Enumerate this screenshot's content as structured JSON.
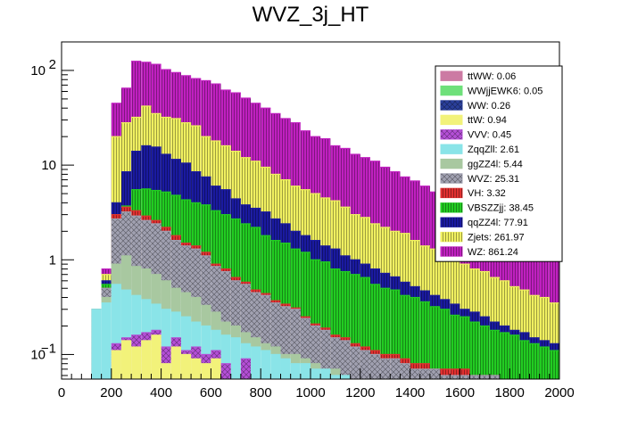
{
  "chart_data": {
    "type": "bar",
    "subtype": "stacked-histogram",
    "title": "WVZ_3j_HT",
    "xlabel": "",
    "ylabel": "",
    "xlim": [
      0,
      2000
    ],
    "ylim": [
      0.055,
      200
    ],
    "yscale": "log",
    "x_tick_labels": [
      "0",
      "200",
      "400",
      "600",
      "800",
      "1000",
      "1200",
      "1400",
      "1600",
      "1800",
      "2000"
    ],
    "y_tick_labels": [
      {
        "value": 100,
        "base": "10",
        "exp": "2"
      },
      {
        "value": 10,
        "base": "10",
        "exp": ""
      },
      {
        "value": 1,
        "base": "1",
        "exp": ""
      },
      {
        "value": 0.1,
        "base": "10",
        "exp": "−1"
      }
    ],
    "legend": [
      {
        "label": "ttWW: 0.06",
        "color": "#cc7aa3",
        "pattern": "solid"
      },
      {
        "label": "WWjjEWK6: 0.05",
        "color": "#6ee07a",
        "pattern": "solid"
      },
      {
        "label": "WW: 0.26",
        "color": "#2a3f9a",
        "pattern": "crosshatch"
      },
      {
        "label": "ttW: 0.94",
        "color": "#f2f27a",
        "pattern": "solid"
      },
      {
        "label": "VVV: 0.45",
        "color": "#b44fd6",
        "pattern": "crosshatch"
      },
      {
        "label": "ZqqZll: 2.61",
        "color": "#8ae4e8",
        "pattern": "solid"
      },
      {
        "label": "ggZZ4l: 5.44",
        "color": "#a8c8a0",
        "pattern": "solid"
      },
      {
        "label": "WVZ: 25.31",
        "color": "#a0a0b0",
        "pattern": "crosshatch"
      },
      {
        "label": "VH: 3.32",
        "color": "#e03030",
        "pattern": "vlines"
      },
      {
        "label": "VBSZZjj: 38.45",
        "color": "#22cc22",
        "pattern": "vlines"
      },
      {
        "label": "qqZZ4l: 77.91",
        "color": "#1a1aa0",
        "pattern": "vlines"
      },
      {
        "label": "Zjets: 261.97",
        "color": "#f0f060",
        "pattern": "vlines"
      },
      {
        "label": "WZ: 861.24",
        "color": "#c020c0",
        "pattern": "vlines"
      }
    ],
    "bin_width": 40,
    "bins_start": [
      120,
      160,
      200,
      240,
      280,
      320,
      360,
      400,
      440,
      480,
      520,
      560,
      600,
      640,
      680,
      720,
      760,
      800,
      840,
      880,
      920,
      960,
      1000,
      1040,
      1080,
      1120,
      1160,
      1200,
      1240,
      1280,
      1320,
      1360,
      1400,
      1440,
      1480,
      1520,
      1560,
      1600,
      1640,
      1680,
      1720,
      1760,
      1800,
      1840,
      1880,
      1920,
      1960
    ],
    "cumulative_tops": [
      {
        "name": "ttW",
        "values": [
          0,
          0.04,
          0.11,
          0.14,
          0.12,
          0.14,
          0.16,
          0.08,
          0.12,
          0.1,
          0.09,
          0.08,
          0.09,
          0,
          0,
          0,
          0,
          0,
          0,
          0,
          0,
          0,
          0,
          0,
          0,
          0,
          0,
          0,
          0,
          0,
          0,
          0,
          0,
          0,
          0,
          0,
          0,
          0,
          0,
          0,
          0,
          0,
          0,
          0,
          0,
          0,
          0
        ]
      },
      {
        "name": "VVV",
        "values": [
          0,
          0.05,
          0.13,
          0.15,
          0.16,
          0.17,
          0.18,
          0.12,
          0.15,
          0.11,
          0.12,
          0.1,
          0.11,
          0.08,
          0,
          0.09,
          0,
          0,
          0,
          0,
          0,
          0,
          0,
          0,
          0,
          0,
          0,
          0,
          0,
          0,
          0,
          0,
          0,
          0,
          0,
          0,
          0,
          0,
          0,
          0,
          0,
          0,
          0,
          0,
          0,
          0,
          0
        ]
      },
      {
        "name": "ZqqZll",
        "values": [
          0.3,
          0.35,
          0.55,
          0.48,
          0.42,
          0.38,
          0.34,
          0.3,
          0.28,
          0.25,
          0.22,
          0.2,
          0.18,
          0.16,
          0.15,
          0.13,
          0.12,
          0.11,
          0.1,
          0.09,
          0.08,
          0.08,
          0.07,
          0.07,
          0.06,
          0.06,
          0,
          0,
          0,
          0,
          0,
          0,
          0,
          0,
          0,
          0,
          0,
          0,
          0,
          0,
          0,
          0,
          0,
          0,
          0,
          0,
          0
        ]
      },
      {
        "name": "ggZZ4l",
        "values": [
          0.3,
          0.4,
          0.9,
          1.1,
          0.85,
          0.8,
          0.7,
          0.6,
          0.5,
          0.45,
          0.4,
          0.33,
          0.28,
          0.22,
          0.2,
          0.17,
          0.15,
          0.13,
          0.12,
          0.1,
          0.1,
          0.09,
          0.08,
          0.07,
          0.07,
          0.06,
          0,
          0,
          0,
          0,
          0,
          0,
          0,
          0,
          0,
          0,
          0,
          0,
          0,
          0,
          0,
          0,
          0,
          0,
          0,
          0,
          0
        ]
      },
      {
        "name": "WVZ",
        "values": [
          0.3,
          0.5,
          2.7,
          3.2,
          2.9,
          2.6,
          2.4,
          2.0,
          1.6,
          1.4,
          1.3,
          1.1,
          0.85,
          0.75,
          0.6,
          0.55,
          0.45,
          0.42,
          0.35,
          0.32,
          0.3,
          0.24,
          0.2,
          0.18,
          0.15,
          0.14,
          0.12,
          0.11,
          0.1,
          0.09,
          0.09,
          0.08,
          0.07,
          0.07,
          0.07,
          0.06,
          0.06,
          0.06,
          0.06,
          0.06,
          0.06,
          0,
          0,
          0,
          0,
          0,
          0
        ]
      },
      {
        "name": "VH",
        "values": [
          0.3,
          0.5,
          3.0,
          3.6,
          3.3,
          2.9,
          2.6,
          2.2,
          1.8,
          1.5,
          1.4,
          1.2,
          0.9,
          0.8,
          0.65,
          0.58,
          0.48,
          0.44,
          0.37,
          0.34,
          0.31,
          0.25,
          0.21,
          0.19,
          0.16,
          0.15,
          0.13,
          0.12,
          0.11,
          0.1,
          0.1,
          0.09,
          0.08,
          0.08,
          0.07,
          0.07,
          0.07,
          0.07,
          0.06,
          0.06,
          0.06,
          0,
          0,
          0,
          0,
          0,
          0
        ]
      },
      {
        "name": "VBSZZjj",
        "values": [
          0.3,
          0.55,
          3.0,
          3.7,
          5.5,
          5.6,
          5.4,
          5.2,
          4.8,
          4.3,
          4.0,
          3.8,
          3.3,
          3.0,
          2.7,
          2.4,
          2.2,
          1.8,
          1.6,
          1.5,
          1.3,
          1.2,
          1.0,
          0.95,
          0.8,
          0.75,
          0.7,
          0.65,
          0.55,
          0.5,
          0.48,
          0.42,
          0.4,
          0.36,
          0.32,
          0.3,
          0.26,
          0.25,
          0.22,
          0.2,
          0.18,
          0.17,
          0.16,
          0.14,
          0.13,
          0.12,
          0.11
        ]
      },
      {
        "name": "qqZZ4l",
        "values": [
          0.3,
          0.6,
          4.0,
          8.5,
          14.0,
          16.0,
          15.5,
          13.0,
          11.5,
          10.5,
          8.5,
          7.5,
          6.0,
          5.5,
          4.4,
          3.8,
          3.5,
          3.2,
          2.7,
          2.4,
          2.0,
          1.8,
          1.6,
          1.4,
          1.3,
          1.1,
          1.0,
          0.9,
          0.8,
          0.72,
          0.66,
          0.58,
          0.52,
          0.47,
          0.42,
          0.38,
          0.34,
          0.3,
          0.28,
          0.25,
          0.22,
          0.2,
          0.18,
          0.17,
          0.15,
          0.14,
          0.13
        ]
      },
      {
        "name": "Zjets",
        "values": [
          0.3,
          0.7,
          20.0,
          28.0,
          32.0,
          42.0,
          35.0,
          32.0,
          31.0,
          28.0,
          26.0,
          20.0,
          18.0,
          16.0,
          14.0,
          12.0,
          11.0,
          9.5,
          8.0,
          7.0,
          6.0,
          5.5,
          5.0,
          4.5,
          4.2,
          3.6,
          3.0,
          2.8,
          2.4,
          2.2,
          2.0,
          1.9,
          1.6,
          1.4,
          1.3,
          1.1,
          1.0,
          0.9,
          0.8,
          0.75,
          0.65,
          0.6,
          0.52,
          0.48,
          0.42,
          0.4,
          0.35
        ]
      },
      {
        "name": "WZ",
        "values": [
          0.3,
          0.8,
          45.0,
          65.0,
          125.0,
          122.0,
          116.0,
          102.0,
          95.0,
          88.0,
          82.0,
          78.0,
          72.0,
          62.0,
          58.0,
          51.0,
          45.0,
          40.0,
          35.0,
          31.0,
          28.0,
          23.0,
          20.0,
          19.0,
          16.0,
          15.0,
          13.0,
          12.0,
          11.0,
          9.5,
          8.5,
          7.5,
          6.8,
          6.0,
          5.2,
          4.8,
          4.2,
          4.0,
          3.4,
          3.0,
          2.6,
          2.4,
          2.3,
          2.0,
          1.9,
          1.7,
          1.6
        ]
      }
    ]
  }
}
